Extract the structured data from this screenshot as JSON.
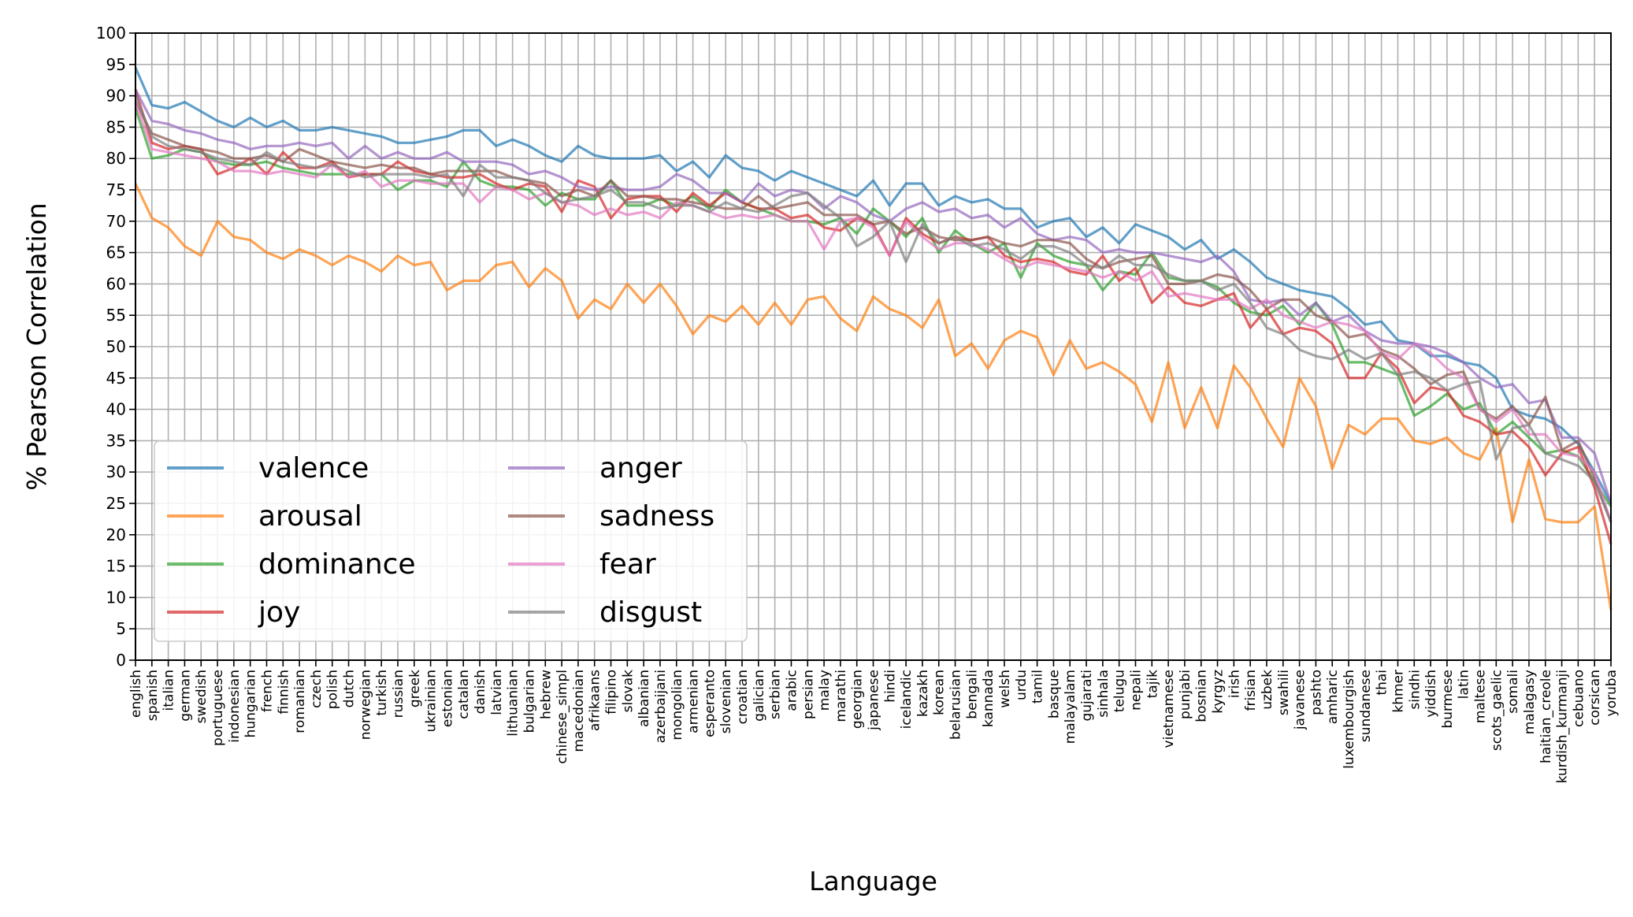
{
  "chart_data": {
    "type": "line",
    "title": "",
    "xlabel": "Language",
    "ylabel": "% Pearson Correlation",
    "ylim": [
      0,
      100
    ],
    "yticks": [
      0,
      5,
      10,
      15,
      20,
      25,
      30,
      35,
      40,
      45,
      50,
      55,
      60,
      65,
      70,
      75,
      80,
      85,
      90,
      95,
      100
    ],
    "grid": true,
    "legend_position": "lower-left",
    "legend_columns": 2,
    "categories": [
      "english",
      "spanish",
      "italian",
      "german",
      "swedish",
      "portuguese",
      "indonesian",
      "hungarian",
      "french",
      "finnish",
      "romanian",
      "czech",
      "polish",
      "dutch",
      "norwegian",
      "turkish",
      "russian",
      "greek",
      "ukrainian",
      "estonian",
      "catalan",
      "danish",
      "latvian",
      "lithuanian",
      "bulgarian",
      "hebrew",
      "chinese_simpl",
      "macedonian",
      "afrikaans",
      "filipino",
      "slovak",
      "albanian",
      "azerbaijani",
      "mongolian",
      "armenian",
      "esperanto",
      "slovenian",
      "croatian",
      "galician",
      "serbian",
      "arabic",
      "persian",
      "malay",
      "marathi",
      "georgian",
      "japanese",
      "hindi",
      "icelandic",
      "kazakh",
      "korean",
      "belarusian",
      "bengali",
      "kannada",
      "welsh",
      "urdu",
      "tamil",
      "basque",
      "malayalam",
      "gujarati",
      "sinhala",
      "telugu",
      "nepali",
      "tajik",
      "vietnamese",
      "punjabi",
      "bosnian",
      "kyrgyz",
      "irish",
      "frisian",
      "uzbek",
      "swahili",
      "javanese",
      "pashto",
      "amharic",
      "luxembourgish",
      "sundanese",
      "thai",
      "khmer",
      "sindhi",
      "yiddish",
      "burmese",
      "latin",
      "maltese",
      "scots_gaelic",
      "somali",
      "malagasy",
      "haitian_creole",
      "kurdish_kurmanji",
      "cebuano",
      "corsican",
      "yoruba"
    ],
    "series": [
      {
        "name": "valence",
        "color": "#1f77b4",
        "values": [
          94.5,
          88.5,
          88,
          89,
          87.5,
          86,
          85,
          86.5,
          85,
          86,
          84.5,
          84.5,
          85,
          84.5,
          84,
          83.5,
          82.5,
          82.5,
          83,
          83.5,
          84.5,
          84.5,
          82,
          83,
          82,
          80.5,
          79.5,
          82,
          80.5,
          80,
          80,
          80,
          80.5,
          78,
          79.5,
          77,
          80.5,
          78.5,
          78,
          76.5,
          78,
          77,
          76,
          75,
          74,
          76.5,
          72.5,
          76,
          76,
          72.5,
          74,
          73,
          73.5,
          72,
          72,
          69,
          70,
          70.5,
          67.5,
          69,
          66.5,
          69.5,
          68.5,
          67.5,
          65.5,
          67,
          64,
          65.5,
          63.5,
          61,
          60,
          59,
          58.5,
          58,
          56,
          53.5,
          54,
          51,
          50.5,
          48.5,
          48.5,
          47.5,
          47,
          45,
          40,
          39,
          38.5,
          37,
          34.5,
          30,
          25
        ]
      },
      {
        "name": "arousal",
        "color": "#ff7f0e",
        "values": [
          76,
          70.5,
          69,
          66,
          64.5,
          70,
          67.5,
          67,
          65,
          64,
          65.5,
          64.5,
          63,
          64.5,
          63.5,
          62,
          64.5,
          63,
          63.5,
          59,
          60.5,
          60.5,
          63,
          63.5,
          59.5,
          62.5,
          60.5,
          54.5,
          57.5,
          56,
          60,
          57,
          60,
          56.5,
          52,
          55,
          54,
          56.5,
          53.5,
          57,
          53.5,
          57.5,
          58,
          54.5,
          52.5,
          58,
          56,
          55,
          53,
          57.5,
          48.5,
          50.5,
          46.5,
          51,
          52.5,
          51.5,
          45.5,
          51,
          46.5,
          47.5,
          46,
          44,
          38,
          47.5,
          37,
          43.5,
          37,
          47,
          43.5,
          38.5,
          34,
          45,
          40.5,
          30.5,
          37.5,
          36,
          38.5,
          38.5,
          35,
          34.5,
          35.5,
          33,
          32,
          37,
          22,
          32,
          22.5,
          22,
          22,
          24.5,
          8
        ]
      },
      {
        "name": "dominance",
        "color": "#2ca02c",
        "values": [
          88,
          80,
          80.5,
          81.5,
          81,
          79.5,
          79,
          79,
          79.5,
          78.5,
          78,
          77.5,
          77.5,
          77.5,
          77.5,
          77.5,
          75,
          76.5,
          76.5,
          75.5,
          79.5,
          76.5,
          75.5,
          75.5,
          75,
          72.5,
          74.5,
          73.5,
          73.5,
          76.5,
          72.5,
          72.5,
          73.5,
          72.5,
          74,
          72,
          75,
          73,
          72,
          71,
          70,
          70,
          69.5,
          70.5,
          68,
          72,
          70,
          67.5,
          70.5,
          65,
          68.5,
          66.5,
          65,
          66.5,
          61,
          66.5,
          64.5,
          63.5,
          63,
          59,
          62,
          61.5,
          65,
          61,
          60.5,
          60.5,
          59.5,
          57,
          55.5,
          55,
          56.5,
          53.5,
          57,
          53.5,
          47.5,
          47.5,
          46.5,
          45.5,
          39,
          40.5,
          42.5,
          40,
          41,
          36,
          38,
          35.5,
          33,
          33.5,
          32.5,
          28.5,
          24.5
        ]
      },
      {
        "name": "joy",
        "color": "#d62728",
        "values": [
          91,
          82.5,
          81.5,
          82,
          81.5,
          77.5,
          78.5,
          80,
          77.5,
          81,
          78.5,
          78.5,
          79.5,
          77,
          77.5,
          77.5,
          79.5,
          78,
          77.5,
          77,
          77,
          77.5,
          76,
          75,
          76,
          75.5,
          71.5,
          76.5,
          75.5,
          70.5,
          73.5,
          74,
          74,
          71.5,
          74.5,
          72.5,
          74.5,
          73,
          72,
          72,
          70.5,
          71,
          69,
          68.5,
          70.5,
          69.5,
          64.5,
          70.5,
          68,
          66.5,
          67.5,
          67,
          67.5,
          64.5,
          63.5,
          64,
          63.5,
          62,
          61.5,
          64.5,
          60.5,
          62.5,
          57,
          59.5,
          57,
          56.5,
          57.5,
          58.5,
          53,
          56,
          52,
          53,
          52.5,
          50.5,
          45,
          45,
          49,
          46.5,
          41,
          43.5,
          43,
          39,
          38,
          36,
          36.5,
          34,
          29.5,
          33,
          34,
          27.5,
          18.5
        ]
      },
      {
        "name": "anger",
        "color": "#9467bd",
        "values": [
          91,
          86,
          85.5,
          84.5,
          84,
          83,
          82.5,
          81.5,
          82,
          82,
          82.5,
          82,
          82.5,
          80,
          82,
          80,
          81,
          80,
          80,
          81,
          79.5,
          79.5,
          79.5,
          79,
          77.5,
          78,
          77,
          75.5,
          75,
          75.5,
          75,
          75,
          75.5,
          77.5,
          76.5,
          74.5,
          74.5,
          73,
          76,
          74,
          75,
          74.5,
          72,
          74,
          73,
          71,
          70,
          72,
          73,
          71.5,
          72,
          70.5,
          71,
          69,
          70.5,
          68,
          67,
          67.5,
          67,
          65,
          65.5,
          65,
          65,
          64.5,
          64,
          63.5,
          64.5,
          62,
          57.5,
          57,
          57.5,
          55,
          57,
          54,
          55,
          52.5,
          51,
          50.5,
          50.5,
          50,
          49,
          47.5,
          45,
          43.5,
          44,
          41,
          41.5,
          35.5,
          35.5,
          33,
          25
        ]
      },
      {
        "name": "sadness",
        "color": "#8c564b",
        "values": [
          89,
          84,
          83,
          82,
          81.5,
          81,
          80,
          80,
          80.5,
          79.5,
          81.5,
          80.5,
          79.5,
          79,
          78.5,
          79,
          78.5,
          78.5,
          77.5,
          78,
          78,
          78,
          78,
          77,
          76.5,
          76,
          74,
          75,
          74,
          76.5,
          74,
          74,
          73.5,
          73.5,
          73,
          72.5,
          72,
          72,
          74,
          72,
          72.5,
          73,
          71,
          71,
          71,
          69.5,
          70,
          68,
          69,
          67.5,
          67,
          67,
          67.5,
          66.5,
          66,
          67,
          67,
          66.5,
          64,
          62.5,
          63.5,
          64,
          64.5,
          60,
          60,
          60.5,
          61.5,
          61,
          59,
          56,
          57.5,
          57.5,
          55,
          54,
          51.5,
          52,
          49.5,
          48.5,
          46.5,
          44,
          45.5,
          46,
          40,
          38.5,
          40.5,
          37.5,
          42,
          33.5,
          35,
          29,
          22
        ]
      },
      {
        "name": "fear",
        "color": "#e377c2",
        "values": [
          89,
          81.5,
          81,
          80.5,
          80,
          79.5,
          78,
          78,
          77.5,
          78,
          77.5,
          77,
          79,
          77,
          78,
          75.5,
          76.5,
          76.5,
          76,
          76,
          76,
          73,
          75.5,
          75,
          73.5,
          74.5,
          73,
          72.5,
          71,
          72,
          71,
          71.5,
          70.5,
          73,
          72.5,
          71.5,
          70.5,
          71,
          70.5,
          71,
          70,
          70,
          65.5,
          70,
          70.5,
          69,
          64.5,
          70,
          67.5,
          65.5,
          66.5,
          66.5,
          65.5,
          64,
          62.5,
          63.5,
          63,
          62.5,
          62,
          61,
          62,
          60.5,
          62,
          58,
          58.5,
          58,
          57.5,
          57.5,
          56,
          57.5,
          55,
          54,
          53,
          54,
          53.5,
          52.5,
          49,
          48,
          50.5,
          49,
          46.5,
          45,
          40,
          38,
          40,
          36,
          36,
          33,
          32.5,
          30,
          22
        ]
      },
      {
        "name": "disgust",
        "color": "#7f7f7f",
        "values": [
          90,
          83.5,
          82,
          81.5,
          81,
          80,
          79.5,
          79,
          81,
          79.5,
          79,
          78.5,
          79,
          78,
          77,
          77.5,
          77.5,
          77.5,
          77,
          77.5,
          74,
          79,
          77,
          77,
          76.5,
          74.5,
          73,
          73.5,
          74,
          75,
          73,
          73,
          72,
          72.5,
          72.5,
          71.5,
          73,
          72,
          71.5,
          72.5,
          74,
          74.5,
          72.5,
          70.5,
          66,
          67.5,
          70,
          63.5,
          69.5,
          66.5,
          67.5,
          66,
          66.5,
          65.5,
          64,
          66,
          66,
          65,
          63,
          62.5,
          64.5,
          63,
          63,
          61.5,
          60.5,
          60.5,
          59,
          60,
          57,
          53,
          52,
          49.5,
          48.5,
          48,
          49.5,
          48,
          49,
          45.5,
          46,
          45,
          43,
          44,
          44.5,
          32,
          37,
          37.5,
          33,
          32,
          31,
          28.5,
          22
        ]
      }
    ]
  }
}
